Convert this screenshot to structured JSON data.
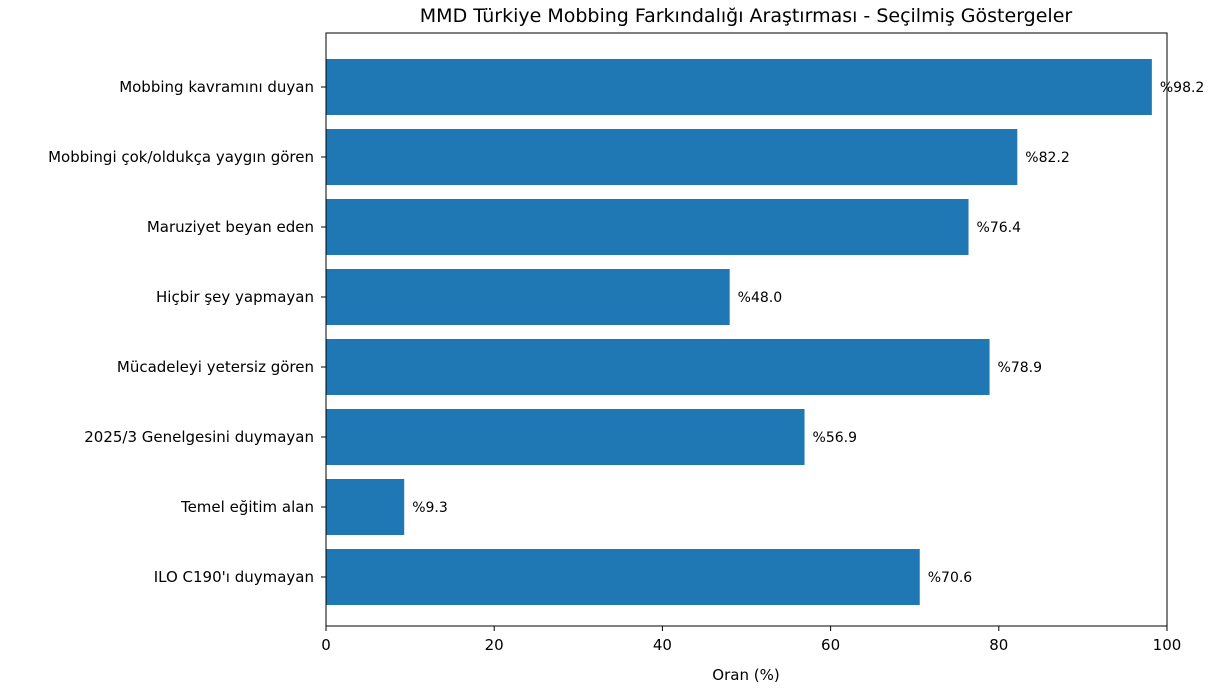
{
  "chart_data": {
    "type": "bar",
    "orientation": "horizontal",
    "title": "MMD Türkiye Mobbing Farkındalığı Araştırması - Seçilmiş Göstergeler",
    "xlabel": "Oran (%)",
    "ylabel": "",
    "xlim": [
      0,
      100
    ],
    "xticks": [
      0,
      20,
      40,
      60,
      80,
      100
    ],
    "grid": false,
    "bar_color": "#1f77b4",
    "value_prefix": "%",
    "categories": [
      "Mobbing kavramını duyan",
      "Mobbingi çok/oldukça yaygın gören",
      "Maruziyet beyan eden",
      "Hiçbir şey yapmayan",
      "Mücadeleyi yetersiz gören",
      "2025/3 Genelgesini duymayan",
      "Temel eğitim alan",
      "ILO C190'ı duymayan"
    ],
    "values": [
      98.2,
      82.2,
      76.4,
      48.0,
      78.9,
      56.9,
      9.3,
      70.6
    ],
    "value_labels": [
      "%98.2",
      "%82.2",
      "%76.4",
      "%48.0",
      "%78.9",
      "%56.9",
      "%9.3",
      "%70.6"
    ]
  }
}
